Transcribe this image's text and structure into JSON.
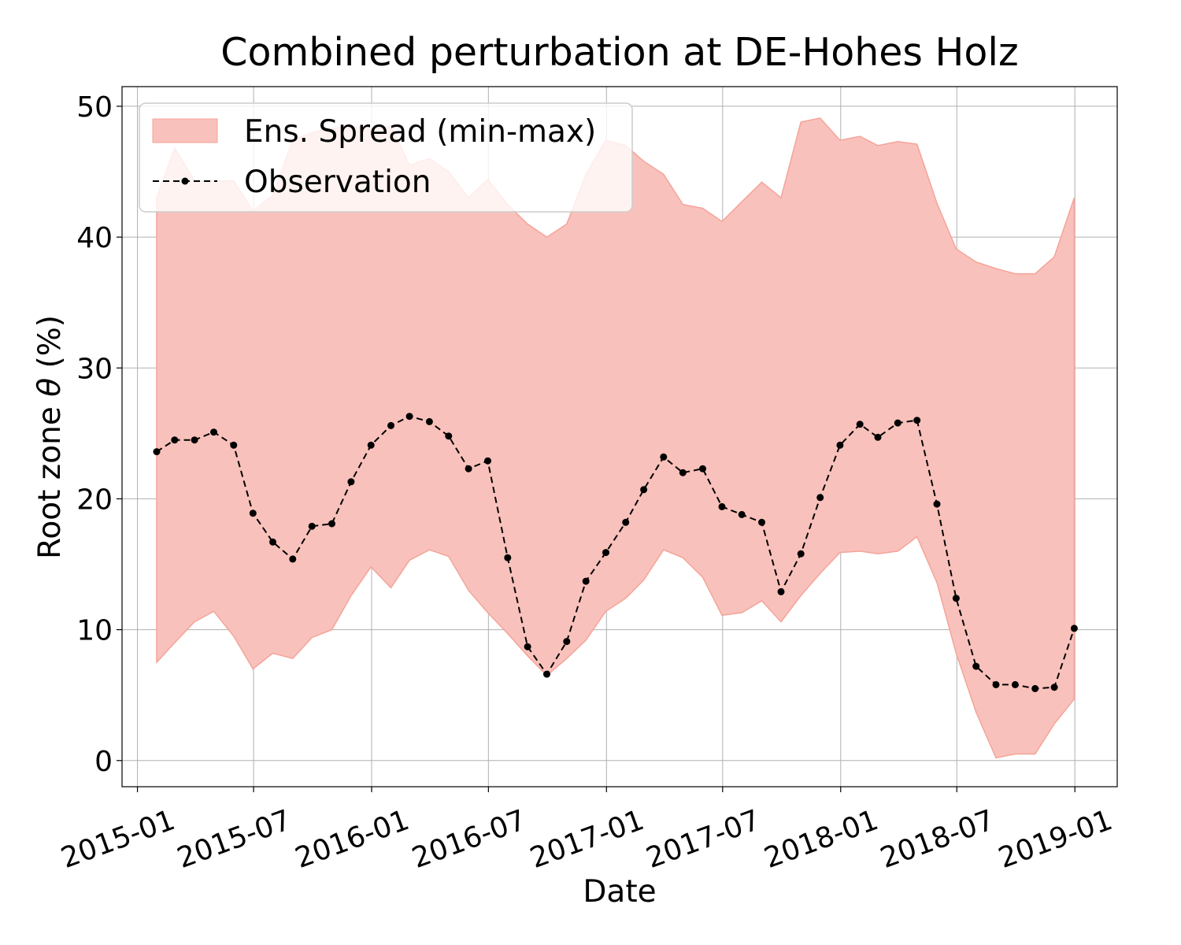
{
  "chart_data": {
    "type": "area",
    "title": "Combined perturbation at DE-Hohes Holz",
    "xlabel": "Date",
    "ylabel_prefix": "Root zone ",
    "ylabel_symbol": "θ",
    "ylabel_suffix": "  (%)",
    "ylim": [
      -2,
      51.5
    ],
    "yticks": [
      0,
      10,
      20,
      30,
      40,
      50
    ],
    "xlim": [
      "2014-12-08",
      "2019-03-08"
    ],
    "xticks": [
      "2015-01",
      "2015-07",
      "2016-01",
      "2016-07",
      "2017-01",
      "2017-07",
      "2018-01",
      "2018-07",
      "2019-01"
    ],
    "grid": true,
    "legend_position": "upper-left",
    "x": [
      "2015-01-31",
      "2015-02-28",
      "2015-03-31",
      "2015-04-30",
      "2015-05-31",
      "2015-06-30",
      "2015-07-31",
      "2015-08-31",
      "2015-09-30",
      "2015-10-31",
      "2015-11-30",
      "2015-12-31",
      "2016-01-31",
      "2016-02-29",
      "2016-03-31",
      "2016-04-30",
      "2016-05-31",
      "2016-06-30",
      "2016-07-31",
      "2016-08-31",
      "2016-09-30",
      "2016-10-31",
      "2016-11-30",
      "2016-12-31",
      "2017-01-31",
      "2017-02-28",
      "2017-03-31",
      "2017-04-30",
      "2017-05-31",
      "2017-06-30",
      "2017-07-31",
      "2017-08-31",
      "2017-09-30",
      "2017-10-31",
      "2017-11-30",
      "2017-12-31",
      "2018-01-31",
      "2018-02-28",
      "2018-03-31",
      "2018-04-30",
      "2018-05-31",
      "2018-06-30",
      "2018-07-31",
      "2018-08-31",
      "2018-09-30",
      "2018-10-31",
      "2018-11-30",
      "2018-12-31"
    ],
    "series": [
      {
        "name": "Ens. Spread (min-max)",
        "kind": "band",
        "color": "#f9c1bb",
        "edge_color": "#f4a49a",
        "upper": [
          43.0,
          46.8,
          44.3,
          44.3,
          44.3,
          42.0,
          43.2,
          47.4,
          48.0,
          48.3,
          48.5,
          48.2,
          48.5,
          45.5,
          46.0,
          45.0,
          43.0,
          44.4,
          42.5,
          41.0,
          40.0,
          41.0,
          44.8,
          47.4,
          47.0,
          45.8,
          44.8,
          42.5,
          42.2,
          41.2,
          42.7,
          44.2,
          43.0,
          48.8,
          49.1,
          47.4,
          47.7,
          47.0,
          47.3,
          47.1,
          42.6,
          39.1,
          38.1,
          37.6,
          37.2,
          37.2,
          38.5,
          43.0
        ],
        "lower": [
          7.5,
          9.0,
          10.6,
          11.4,
          9.5,
          7.0,
          8.2,
          7.8,
          9.4,
          10.0,
          12.6,
          14.8,
          13.2,
          15.3,
          16.1,
          15.6,
          13.0,
          11.3,
          9.7,
          8.0,
          6.5,
          7.8,
          9.2,
          11.4,
          12.4,
          13.8,
          16.1,
          15.5,
          14.0,
          11.1,
          11.3,
          12.2,
          10.6,
          12.6,
          14.3,
          15.9,
          16.0,
          15.8,
          16.0,
          17.1,
          13.6,
          8.2,
          3.7,
          0.2,
          0.5,
          0.5,
          2.8,
          4.7
        ]
      },
      {
        "name": "Observation",
        "kind": "line",
        "color": "#000000",
        "values": [
          23.6,
          24.5,
          24.5,
          25.1,
          24.1,
          18.9,
          16.7,
          15.4,
          17.9,
          18.1,
          21.3,
          24.1,
          25.6,
          26.3,
          25.9,
          24.8,
          22.3,
          22.9,
          15.5,
          8.7,
          6.6,
          9.1,
          13.7,
          15.9,
          18.2,
          20.7,
          23.2,
          22.0,
          22.3,
          19.4,
          18.8,
          18.2,
          12.9,
          15.8,
          20.1,
          24.1,
          25.7,
          24.7,
          25.8,
          26.0,
          19.6,
          12.4,
          7.2,
          5.8,
          5.8,
          5.5,
          5.6,
          10.1
        ]
      }
    ]
  }
}
